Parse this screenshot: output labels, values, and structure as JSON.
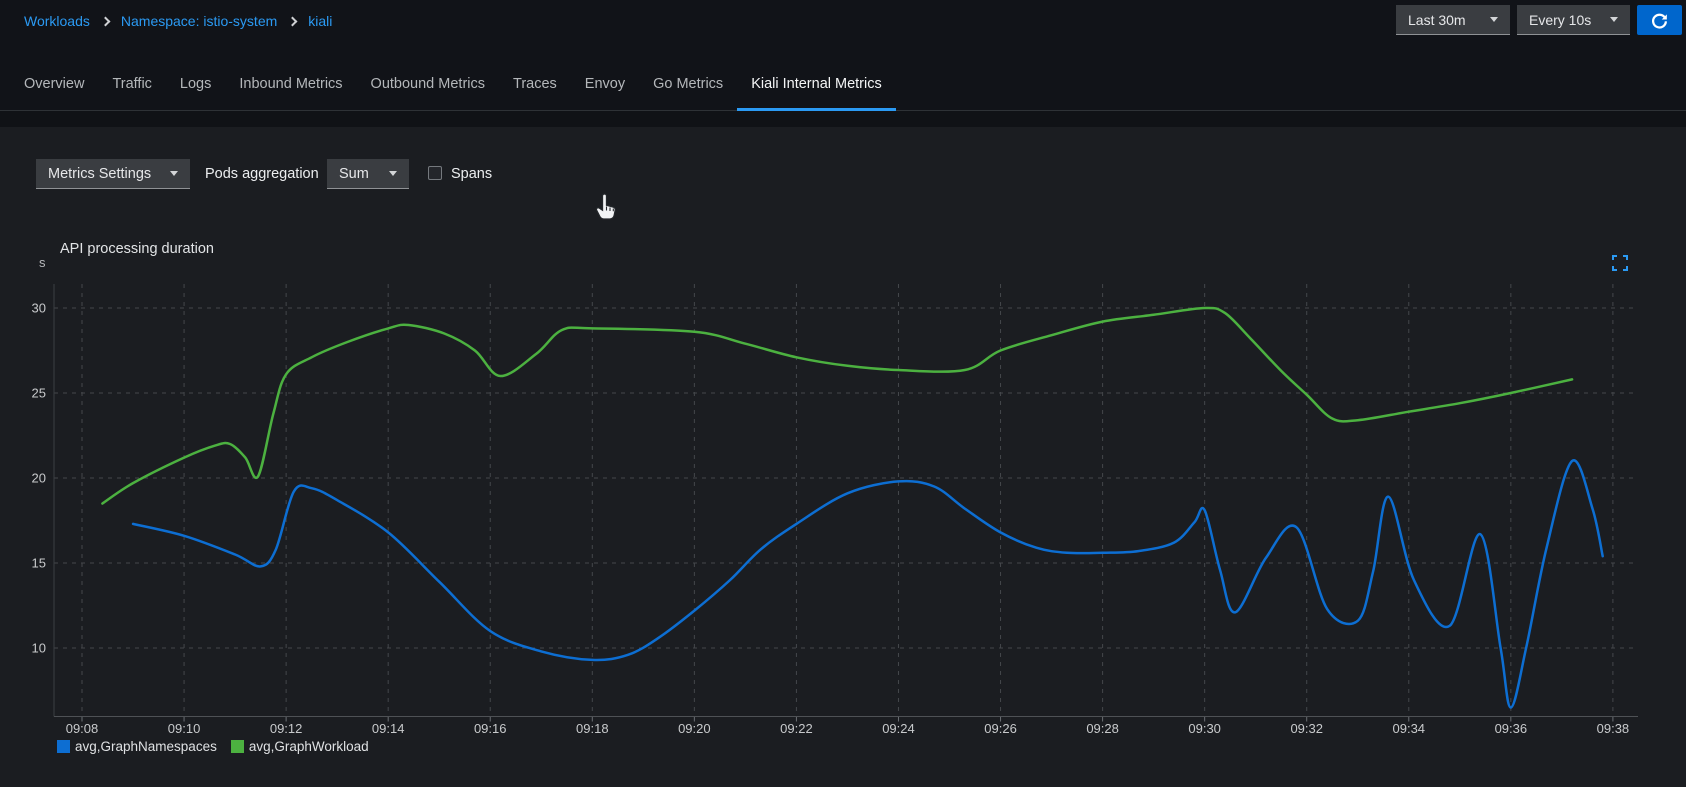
{
  "breadcrumb": {
    "items": [
      {
        "label": "Workloads"
      },
      {
        "label": "Namespace: istio-system"
      },
      {
        "label": "kiali"
      }
    ]
  },
  "header_controls": {
    "duration_value": "Last 30m",
    "refresh_interval_value": "Every 10s",
    "refresh_icon": "sync-icon"
  },
  "tabs": {
    "active": "Kiali Internal Metrics",
    "items": [
      {
        "label": "Overview"
      },
      {
        "label": "Traffic"
      },
      {
        "label": "Logs"
      },
      {
        "label": "Inbound Metrics"
      },
      {
        "label": "Outbound Metrics"
      },
      {
        "label": "Traces"
      },
      {
        "label": "Envoy"
      },
      {
        "label": "Go Metrics"
      },
      {
        "label": "Kiali Internal Metrics"
      }
    ]
  },
  "toolbar": {
    "metrics_settings_label": "Metrics Settings",
    "pods_aggregation_label": "Pods aggregation",
    "aggregation_value": "Sum",
    "spans_label": "Spans",
    "spans_checked": false
  },
  "colors": {
    "accent_blue": "#2b9af3",
    "primary_button": "#0066cc",
    "series_blue": "#0d6ed2",
    "series_green": "#4cb140",
    "grid": "#44474b"
  },
  "chart_data": {
    "type": "line",
    "title": "API processing duration",
    "y_unit": "s",
    "x_tick_labels": [
      "09:08",
      "09:10",
      "09:12",
      "09:14",
      "09:16",
      "09:18",
      "09:20",
      "09:22",
      "09:24",
      "09:26",
      "09:28",
      "09:30",
      "09:32",
      "09:34",
      "09:36",
      "09:38"
    ],
    "x_minutes_per_tick": 2,
    "y_ticks": [
      30,
      25,
      20,
      15,
      10
    ],
    "ylim": [
      6,
      31.3
    ],
    "grid": "dashed",
    "legend_position": "bottom-left",
    "series": [
      {
        "name": "avg,GraphNamespaces",
        "color": "#0d6ed2",
        "points_t_minutes_after_0908_v_seconds": [
          [
            1.0,
            17.3
          ],
          [
            2.0,
            16.6
          ],
          [
            3.0,
            15.5
          ],
          [
            3.5,
            14.8
          ],
          [
            3.8,
            15.8
          ],
          [
            4.15,
            19.2
          ],
          [
            4.5,
            19.4
          ],
          [
            5.0,
            18.7
          ],
          [
            6.0,
            16.8
          ],
          [
            7.0,
            13.9
          ],
          [
            8.0,
            11.0
          ],
          [
            9.0,
            9.8
          ],
          [
            10.0,
            9.3
          ],
          [
            10.7,
            9.6
          ],
          [
            11.3,
            10.6
          ],
          [
            12.0,
            12.2
          ],
          [
            12.7,
            14.0
          ],
          [
            13.3,
            15.8
          ],
          [
            14.0,
            17.3
          ],
          [
            15.0,
            19.1
          ],
          [
            16.0,
            19.8
          ],
          [
            16.7,
            19.5
          ],
          [
            17.3,
            18.2
          ],
          [
            18.0,
            16.8
          ],
          [
            18.7,
            15.9
          ],
          [
            19.3,
            15.6
          ],
          [
            20.0,
            15.6
          ],
          [
            20.7,
            15.7
          ],
          [
            21.4,
            16.2
          ],
          [
            21.8,
            17.4
          ],
          [
            22.0,
            18.1
          ],
          [
            22.3,
            14.6
          ],
          [
            22.6,
            12.1
          ],
          [
            23.2,
            15.3
          ],
          [
            23.8,
            17.1
          ],
          [
            24.4,
            12.3
          ],
          [
            25.0,
            11.6
          ],
          [
            25.3,
            14.5
          ],
          [
            25.6,
            18.9
          ],
          [
            26.1,
            14.0
          ],
          [
            26.8,
            11.3
          ],
          [
            27.4,
            16.7
          ],
          [
            27.8,
            10.0
          ],
          [
            28.0,
            6.5
          ],
          [
            28.3,
            10.0
          ],
          [
            28.7,
            15.9
          ],
          [
            29.2,
            21.0
          ],
          [
            29.6,
            18.2
          ],
          [
            29.8,
            15.4
          ]
        ]
      },
      {
        "name": "avg,GraphWorkload",
        "color": "#4cb140",
        "points_t_minutes_after_0908_v_seconds": [
          [
            0.4,
            18.5
          ],
          [
            1.0,
            19.7
          ],
          [
            2.0,
            21.2
          ],
          [
            2.6,
            21.9
          ],
          [
            2.9,
            22.0
          ],
          [
            3.2,
            21.2
          ],
          [
            3.45,
            20.1
          ],
          [
            3.75,
            23.8
          ],
          [
            4.0,
            26.1
          ],
          [
            4.5,
            27.1
          ],
          [
            5.2,
            28.0
          ],
          [
            6.0,
            28.8
          ],
          [
            6.4,
            29.0
          ],
          [
            7.1,
            28.5
          ],
          [
            7.7,
            27.5
          ],
          [
            8.2,
            26.0
          ],
          [
            8.9,
            27.3
          ],
          [
            9.4,
            28.7
          ],
          [
            10.0,
            28.8
          ],
          [
            12.0,
            28.6
          ],
          [
            13.0,
            27.9
          ],
          [
            14.0,
            27.1
          ],
          [
            15.0,
            26.6
          ],
          [
            16.0,
            26.35
          ],
          [
            17.3,
            26.35
          ],
          [
            18.0,
            27.5
          ],
          [
            19.0,
            28.4
          ],
          [
            20.0,
            29.2
          ],
          [
            21.0,
            29.6
          ],
          [
            22.0,
            30.0
          ],
          [
            22.4,
            29.7
          ],
          [
            22.9,
            28.2
          ],
          [
            23.5,
            26.3
          ],
          [
            24.0,
            24.9
          ],
          [
            24.5,
            23.5
          ],
          [
            25.0,
            23.4
          ],
          [
            26.0,
            23.9
          ],
          [
            27.0,
            24.4
          ],
          [
            28.0,
            25.0
          ],
          [
            29.2,
            25.8
          ]
        ]
      }
    ]
  }
}
